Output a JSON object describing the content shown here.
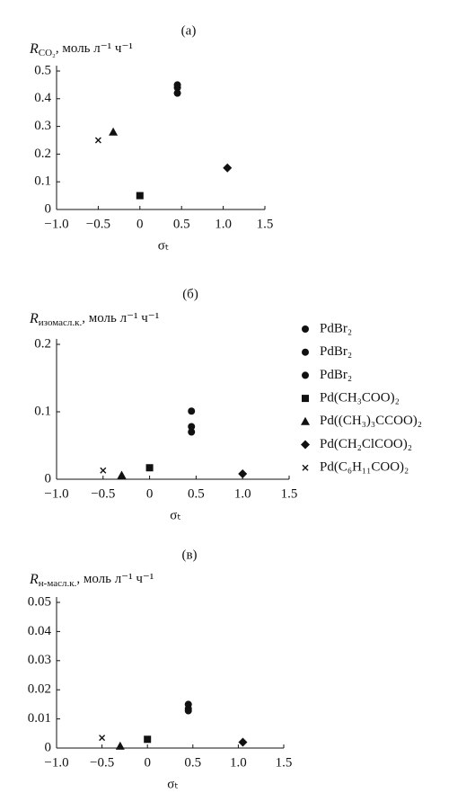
{
  "chart_data": [
    {
      "type": "scatter",
      "panel": "(а)",
      "ylabel": {
        "symbol": "R",
        "subscript": "CO₂",
        "unit": ", моль л⁻¹ ч⁻¹"
      },
      "xlabel": "σₜ",
      "xlim": [
        -1,
        1.5
      ],
      "xticks": [
        {
          "value": -1,
          "label": "−1.0"
        },
        {
          "value": -0.5,
          "label": "−0.5"
        },
        0,
        0.5,
        {
          "value": 1,
          "label": "1.0"
        },
        1.5
      ],
      "ylim": [
        0,
        0.5
      ],
      "yticks": [
        0,
        0.1,
        0.2,
        0.3,
        0.4,
        0.5
      ],
      "series": [
        {
          "marker": "circle",
          "x": [
            0.45
          ],
          "y": [
            0.45
          ]
        },
        {
          "marker": "circle",
          "x": [
            0.45
          ],
          "y": [
            0.44
          ]
        },
        {
          "marker": "circle",
          "x": [
            0.45
          ],
          "y": [
            0.42
          ]
        },
        {
          "marker": "square",
          "x": [
            0
          ],
          "y": [
            0.05
          ]
        },
        {
          "marker": "triangle",
          "x": [
            -0.32
          ],
          "y": [
            0.28
          ]
        },
        {
          "marker": "diamond",
          "x": [
            1.05
          ],
          "y": [
            0.15
          ]
        },
        {
          "marker": "cross",
          "x": [
            -0.5
          ],
          "y": [
            0.25
          ]
        }
      ]
    },
    {
      "type": "scatter",
      "panel": "(б)",
      "ylabel": {
        "symbol": "R",
        "subscript": "изомасл.к.",
        "unit": ", моль л⁻¹ ч⁻¹"
      },
      "xlabel": "σₜ",
      "xlim": [
        -1,
        1.5
      ],
      "xticks": [
        {
          "value": -1,
          "label": "−1.0"
        },
        {
          "value": -0.5,
          "label": "−0.5"
        },
        0,
        0.5,
        {
          "value": 1,
          "label": "1.0"
        },
        1.5
      ],
      "ylim": [
        0,
        0.2
      ],
      "yticks": [
        0,
        0.1,
        0.2
      ],
      "legend": true,
      "series": [
        {
          "name": "PdBr₂",
          "marker": "circle",
          "x": [
            0.45
          ],
          "y": [
            0.101
          ]
        },
        {
          "name": "PdBr₂",
          "marker": "circle",
          "x": [
            0.45
          ],
          "y": [
            0.078
          ]
        },
        {
          "name": "PdBr₂",
          "marker": "circle",
          "x": [
            0.45
          ],
          "y": [
            0.07
          ]
        },
        {
          "name": "Pd(CH₃COO)₂",
          "marker": "square",
          "x": [
            0
          ],
          "y": [
            0.017
          ]
        },
        {
          "name": "Pd((CH₃)₃CCOO)₂",
          "marker": "triangle",
          "x": [
            -0.3
          ],
          "y": [
            0.006
          ]
        },
        {
          "name": "Pd(CH₂ClCOO)₂",
          "marker": "diamond",
          "x": [
            1.0
          ],
          "y": [
            0.008
          ]
        },
        {
          "name": "Pd(C₆H₁₁COO)₂",
          "marker": "cross",
          "x": [
            -0.5
          ],
          "y": [
            0.013
          ]
        }
      ]
    },
    {
      "type": "scatter",
      "panel": "(в)",
      "ylabel": {
        "symbol": "R",
        "subscript": "н-масл.к.",
        "unit": ", моль л⁻¹ ч⁻¹"
      },
      "xlabel": "σₜ",
      "xlim": [
        -1,
        1.5
      ],
      "xticks": [
        {
          "value": -1,
          "label": "−1.0"
        },
        {
          "value": -0.5,
          "label": "−0.5"
        },
        0,
        0.5,
        {
          "value": 1,
          "label": "1.0"
        },
        1.5
      ],
      "ylim": [
        0,
        0.05
      ],
      "yticks": [
        0,
        0.01,
        0.02,
        0.03,
        0.04,
        0.05
      ],
      "series": [
        {
          "marker": "circle",
          "x": [
            0.45
          ],
          "y": [
            0.015
          ]
        },
        {
          "marker": "circle",
          "x": [
            0.45
          ],
          "y": [
            0.0135
          ]
        },
        {
          "marker": "circle",
          "x": [
            0.45
          ],
          "y": [
            0.0128
          ]
        },
        {
          "marker": "square",
          "x": [
            0
          ],
          "y": [
            0.003
          ]
        },
        {
          "marker": "triangle",
          "x": [
            -0.3
          ],
          "y": [
            0.0007
          ]
        },
        {
          "marker": "diamond",
          "x": [
            1.05
          ],
          "y": [
            0.002
          ]
        },
        {
          "marker": "cross",
          "x": [
            -0.5
          ],
          "y": [
            0.0035
          ]
        }
      ]
    }
  ]
}
